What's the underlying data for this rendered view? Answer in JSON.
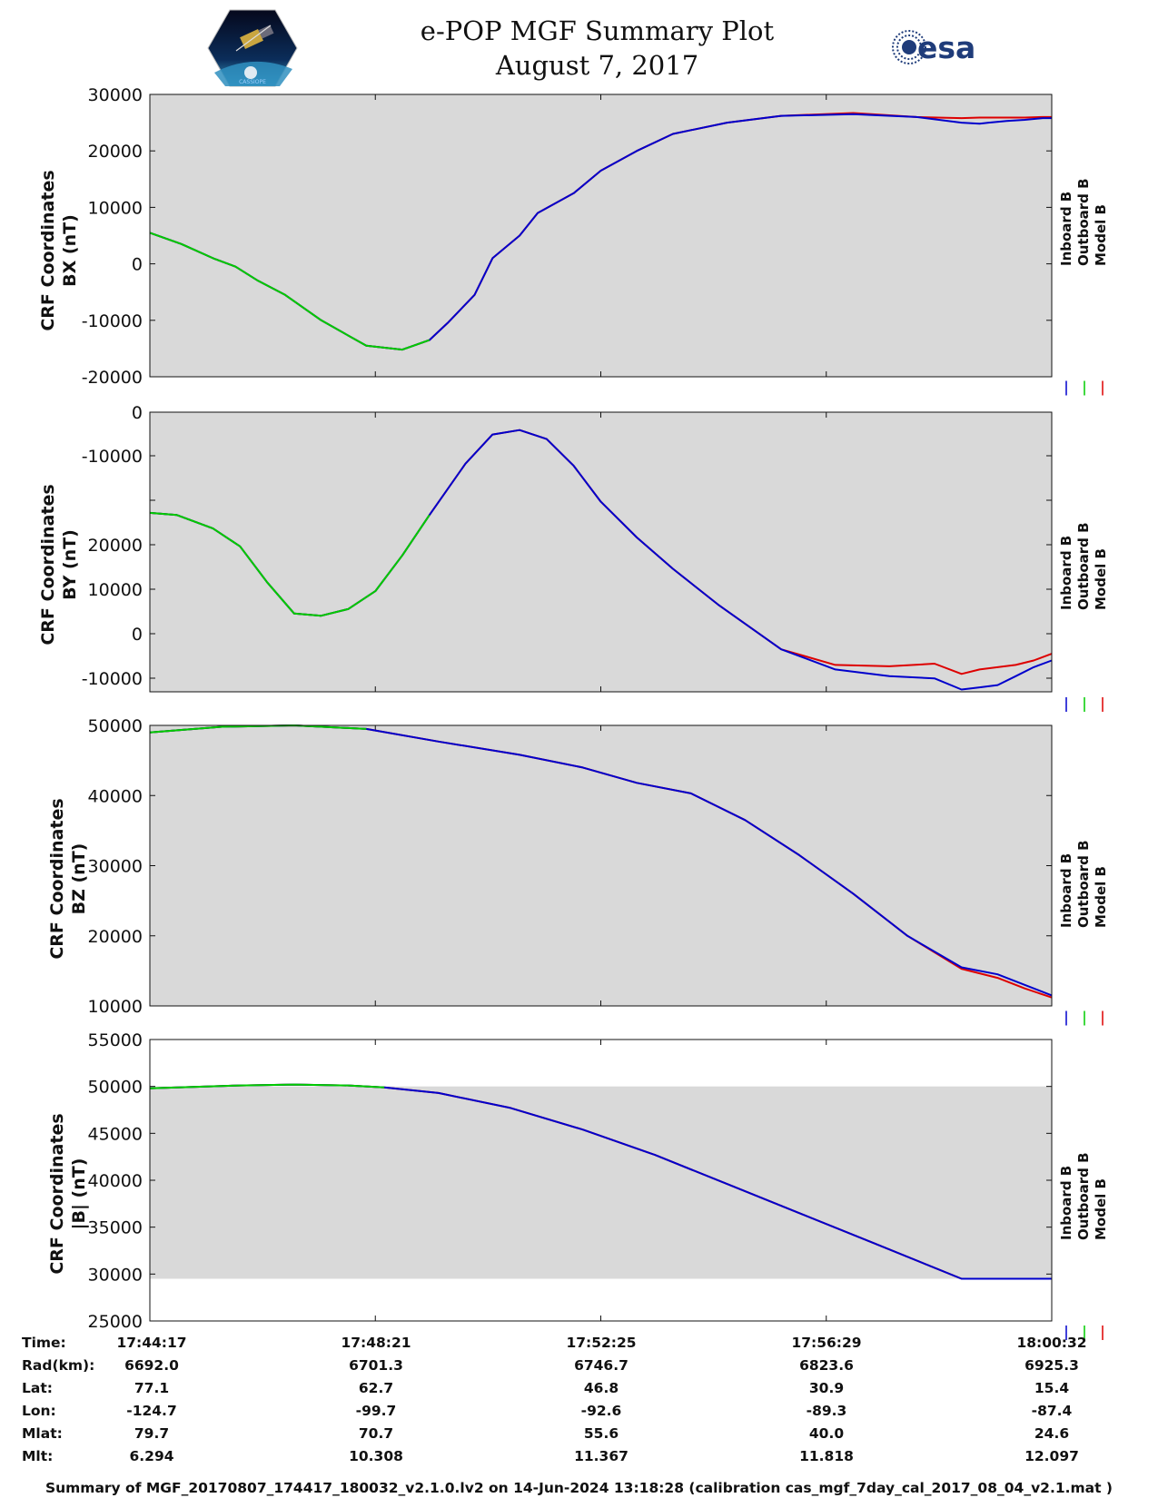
{
  "title": "e-POP MGF Summary Plot",
  "date": "August 7, 2017",
  "logos": {
    "left": "cassiope-mission-logo",
    "right_text": "esa"
  },
  "legend": [
    "Inboard B",
    "Outboard B",
    "Model B"
  ],
  "colors": {
    "inboard": "#0000cc",
    "outboard": "#00cc00",
    "model": "#dd0000",
    "plot_bg": "#d9d9d9"
  },
  "chart_data": [
    {
      "type": "line",
      "ylabel_line1": "CRF Coordinates",
      "ylabel_line2": "BX (nT)",
      "yticks": [
        "30000",
        "20000",
        "10000",
        "0",
        "-10000",
        "-20000"
      ],
      "ylim": [
        -20000,
        30000
      ],
      "x_time_fraction": [
        0,
        0.035,
        0.07,
        0.095,
        0.12,
        0.15,
        0.19,
        0.24,
        0.28,
        0.31,
        0.33,
        0.36,
        0.38,
        0.41,
        0.43,
        0.47,
        0.5,
        0.54,
        0.58,
        0.64,
        0.7,
        0.78,
        0.85,
        0.9,
        0.92,
        0.93,
        0.95,
        0.97,
        0.99,
        1.0
      ],
      "series": [
        {
          "name": "Inboard B",
          "values": [
            5500,
            3500,
            1000,
            -500,
            -3000,
            -5500,
            -10000,
            -14500,
            -15200,
            -13500,
            -10500,
            -5500,
            1000,
            5000,
            9000,
            12500,
            16500,
            20000,
            23000,
            25000,
            26200,
            26500,
            26000,
            25000,
            24800,
            25000,
            25300,
            25500,
            25800,
            25800
          ]
        },
        {
          "name": "Outboard B",
          "values": [
            5500,
            3500,
            1000,
            -500,
            -3000,
            -5500,
            -10000,
            -14500,
            -15200,
            -13500
          ]
        },
        {
          "name": "Model B",
          "values": [
            5500,
            3500,
            1000,
            -500,
            -3000,
            -5500,
            -10000,
            -14500,
            -15200,
            -13500,
            -10500,
            -5500,
            1000,
            5000,
            9000,
            12500,
            16500,
            20000,
            23000,
            25000,
            26200,
            26700,
            26000,
            25800,
            25900,
            25900,
            25900,
            25900,
            26000,
            26000
          ]
        }
      ]
    },
    {
      "type": "line",
      "ylabel_line1": "CRF Coordinates",
      "ylabel_line2": "BY (nT)",
      "yticks": [
        "0",
        "-10000",
        "",
        "20000",
        "10000",
        "0",
        "-10000"
      ],
      "ylim": [
        -12500,
        50000
      ],
      "x_time_fraction": [
        0,
        0.03,
        0.07,
        0.1,
        0.13,
        0.16,
        0.19,
        0.22,
        0.25,
        0.28,
        0.31,
        0.35,
        0.38,
        0.41,
        0.44,
        0.47,
        0.5,
        0.54,
        0.58,
        0.63,
        0.7,
        0.76,
        0.82,
        0.87,
        0.9,
        0.92,
        0.94,
        0.96,
        0.98,
        1.0
      ],
      "series": [
        {
          "name": "Inboard B",
          "values": [
            27500,
            27000,
            24000,
            20000,
            12000,
            5000,
            4500,
            6000,
            10000,
            18000,
            27000,
            38500,
            45000,
            46000,
            44000,
            38000,
            30000,
            22000,
            15000,
            7000,
            -3000,
            -7500,
            -9000,
            -9500,
            -12000,
            -11500,
            -11000,
            -9000,
            -7000,
            -5500
          ]
        },
        {
          "name": "Outboard B",
          "values": [
            27500,
            27000,
            24000,
            20000,
            12000,
            5000,
            4500,
            6000,
            10000,
            18000,
            27000
          ]
        },
        {
          "name": "Model B",
          "values": [
            27500,
            27000,
            24000,
            20000,
            12000,
            5000,
            4500,
            6000,
            10000,
            18000,
            27000,
            38500,
            45000,
            46000,
            44000,
            38000,
            30000,
            22000,
            15000,
            7000,
            -3000,
            -6500,
            -6800,
            -6200,
            -8500,
            -7500,
            -7000,
            -6500,
            -5500,
            -4000
          ]
        }
      ]
    },
    {
      "type": "line",
      "ylabel_line1": "CRF Coordinates",
      "ylabel_line2": "BZ (nT)",
      "yticks": [
        "50000",
        "40000",
        "30000",
        "20000",
        "10000"
      ],
      "ylim": [
        10000,
        50000
      ],
      "x_time_fraction": [
        0,
        0.08,
        0.16,
        0.24,
        0.32,
        0.41,
        0.48,
        0.54,
        0.6,
        0.66,
        0.72,
        0.78,
        0.84,
        0.9,
        0.94,
        0.97,
        1.0
      ],
      "series": [
        {
          "name": "Inboard B",
          "values": [
            49000,
            49800,
            50000,
            49500,
            47700,
            45800,
            44000,
            41800,
            40300,
            36500,
            31500,
            26000,
            20000,
            15500,
            14500,
            13000,
            11500
          ]
        },
        {
          "name": "Outboard B",
          "values": [
            49000,
            49800,
            50000,
            49500
          ]
        },
        {
          "name": "Model B",
          "values": [
            49000,
            49800,
            50000,
            49500,
            47700,
            45800,
            44000,
            41800,
            40300,
            36500,
            31500,
            26000,
            20000,
            15300,
            14000,
            12500,
            11200
          ]
        }
      ]
    },
    {
      "type": "line",
      "ylabel_line1": "CRF Coordinates",
      "ylabel_line2": "|B| (nT)",
      "yticks": [
        "55000",
        "50000",
        "45000",
        "40000",
        "35000",
        "30000",
        "25000"
      ],
      "ylim": [
        25000,
        55000
      ],
      "x_time_fraction": [
        0,
        0.1,
        0.16,
        0.22,
        0.26,
        0.32,
        0.4,
        0.48,
        0.56,
        0.64,
        0.72,
        0.8,
        0.9,
        1.0
      ],
      "series": [
        {
          "name": "Inboard B",
          "values": [
            49800,
            50100,
            50200,
            50100,
            49900,
            49300,
            47700,
            45400,
            42700,
            39600,
            36500,
            33400,
            29500,
            29500
          ]
        },
        {
          "name": "Outboard B",
          "values": [
            49800,
            50100,
            50200,
            50100,
            49900
          ]
        },
        {
          "name": "Model B",
          "values": [
            49800,
            50100,
            50200,
            50100,
            49900,
            49300,
            47700,
            45400,
            42700,
            39600,
            36500,
            33400,
            29500,
            29500
          ]
        }
      ]
    }
  ],
  "table": {
    "labels": [
      "Time:",
      "Rad(km):",
      "Lat:",
      "Lon:",
      "Mlat:",
      "Mlt:"
    ],
    "columns": [
      [
        "17:44:17",
        "6692.0",
        "77.1",
        "-124.7",
        "79.7",
        "6.294"
      ],
      [
        "17:48:21",
        "6701.3",
        "62.7",
        "-99.7",
        "70.7",
        "10.308"
      ],
      [
        "17:52:25",
        "6746.7",
        "46.8",
        "-92.6",
        "55.6",
        "11.367"
      ],
      [
        "17:56:29",
        "6823.6",
        "30.9",
        "-89.3",
        "40.0",
        "11.818"
      ],
      [
        "18:00:32",
        "6925.3",
        "15.4",
        "-87.4",
        "24.6",
        "12.097"
      ]
    ]
  },
  "footer": "Summary of MGF_20170807_174417_180032_v2.1.0.lv2 on 14-Jun-2024 13:18:28 (calibration cas_mgf_7day_cal_2017_08_04_v2.1.mat )"
}
